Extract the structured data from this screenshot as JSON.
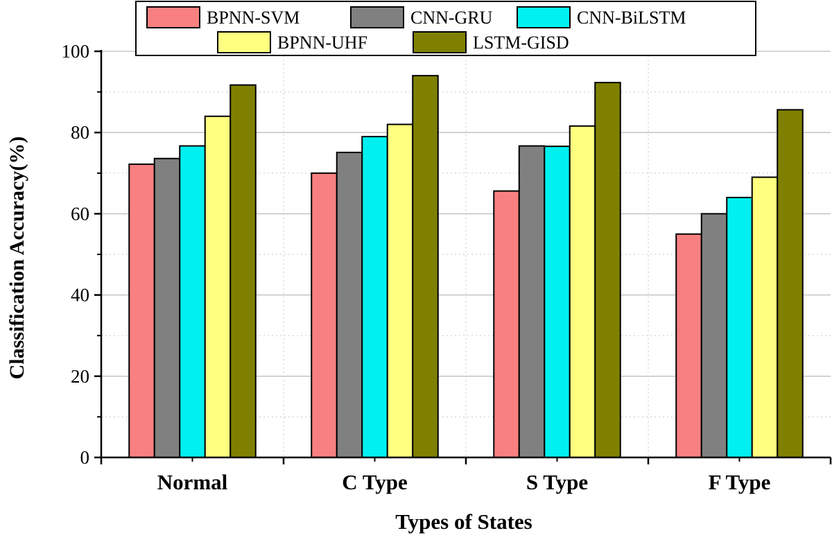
{
  "chart_data": {
    "type": "bar",
    "xlabel": "Types of States",
    "ylabel": "Classification Accuracy(%)",
    "categories": [
      "Normal",
      "C Type",
      "S Type",
      "F Type"
    ],
    "ylim": [
      0,
      100
    ],
    "yticks": [
      0,
      20,
      40,
      60,
      80,
      100
    ],
    "grid": true,
    "legend_position": "top",
    "series": [
      {
        "name": "BPNN-SVM",
        "color": "#f88080",
        "values": [
          72.2,
          70.0,
          65.6,
          55.0
        ]
      },
      {
        "name": "CNN-GRU",
        "color": "#808080",
        "values": [
          73.6,
          75.1,
          76.7,
          60.0
        ]
      },
      {
        "name": "CNN-BiLSTM",
        "color": "#00f0f0",
        "values": [
          76.7,
          79.0,
          76.6,
          64.0
        ]
      },
      {
        "name": "BPNN-UHF",
        "color": "#ffff80",
        "values": [
          84.0,
          82.0,
          81.6,
          69.0
        ]
      },
      {
        "name": "LSTM-GISD",
        "color": "#808000",
        "values": [
          91.7,
          94.0,
          92.3,
          85.6
        ]
      }
    ]
  }
}
